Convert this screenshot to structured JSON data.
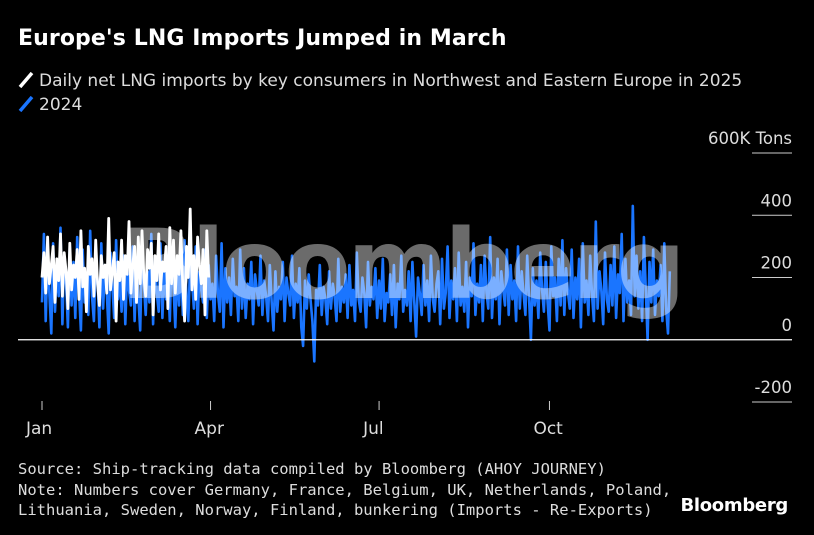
{
  "title": "Europe's LNG Imports Jumped in March",
  "legend": [
    {
      "label": "Daily net LNG imports by key consumers in Northwest and Eastern Europe in 2025",
      "color": "#ffffff"
    },
    {
      "label": "2024",
      "color": "#1a75ff"
    }
  ],
  "watermark": "Bloomberg",
  "footer": {
    "source": "Source: Ship-tracking data compiled by Bloomberg (AHOY JOURNEY)",
    "note_line1": "Note: Numbers cover Germany, France, Belgium, UK, Netherlands, Poland,",
    "note_line2": "Lithuania, Sweden, Norway, Finland, bunkering (Imports - Re-Exports)",
    "brand": "Bloomberg"
  },
  "chart_data": {
    "type": "line",
    "title": "Europe's LNG Imports Jumped in March",
    "ylabel": "Tons",
    "ylim": [
      -200,
      600
    ],
    "yticks": [
      {
        "value": 600,
        "label": "600K Tons"
      },
      {
        "value": 400,
        "label": "400"
      },
      {
        "value": 200,
        "label": "200"
      },
      {
        "value": 0,
        "label": "0"
      },
      {
        "value": -200,
        "label": "-200"
      }
    ],
    "xlim": [
      1,
      366
    ],
    "xticks": [
      {
        "day": 1,
        "label": "Jan"
      },
      {
        "day": 92,
        "label": "Apr"
      },
      {
        "day": 183,
        "label": "Jul"
      },
      {
        "day": 275,
        "label": "Oct"
      }
    ],
    "series": [
      {
        "name": "2024",
        "color": "#1a75ff",
        "start_day": 1,
        "values": [
          120,
          340,
          60,
          280,
          150,
          20,
          310,
          90,
          230,
          140,
          360,
          50,
          270,
          180,
          40,
          300,
          110,
          250,
          70,
          330,
          160,
          30,
          290,
          120,
          210,
          80,
          350,
          140,
          60,
          260,
          190,
          40,
          310,
          100,
          240,
          150,
          20,
          280,
          170,
          70,
          320,
          130,
          200,
          90,
          270,
          50,
          230,
          160,
          110,
          300,
          60,
          250,
          140,
          30,
          290,
          180,
          80,
          220,
          120,
          340,
          50,
          260,
          150,
          90,
          310,
          70,
          240,
          130,
          200,
          60,
          280,
          170,
          40,
          230,
          110,
          270,
          80,
          320,
          140,
          60,
          250,
          190,
          100,
          300,
          50,
          220,
          160,
          120,
          290,
          70,
          240,
          130,
          180,
          60,
          270,
          150,
          90,
          310,
          40,
          230,
          120,
          200,
          80,
          260,
          140,
          170,
          60,
          290,
          100,
          230,
          70,
          180,
          130,
          250,
          50,
          210,
          160,
          110,
          270,
          80,
          190,
          140,
          60,
          240,
          120,
          30,
          220,
          90,
          170,
          130,
          250,
          60,
          200,
          150,
          110,
          270,
          70,
          180,
          120,
          230,
          40,
          -20,
          190,
          100,
          210,
          130,
          60,
          -70,
          160,
          110,
          240,
          80,
          170,
          130,
          50,
          220,
          100,
          180,
          140,
          60,
          260,
          90,
          170,
          120,
          210,
          70,
          240,
          110,
          160,
          60,
          280,
          130,
          90,
          200,
          150,
          40,
          250,
          110,
          170,
          130,
          230,
          70,
          190,
          100,
          260,
          60,
          150,
          120,
          210,
          80,
          240,
          40,
          180,
          130,
          270,
          90,
          160,
          110,
          220,
          60,
          250,
          120,
          10,
          200,
          150,
          80,
          240,
          110,
          190,
          60,
          270,
          130,
          90,
          180,
          220,
          50,
          260,
          100,
          150,
          300,
          70,
          190,
          130,
          230,
          60,
          280,
          110,
          170,
          90,
          250,
          40,
          200,
          140,
          310,
          80,
          180,
          120,
          240,
          60,
          270,
          150,
          100,
          330,
          70,
          200,
          130,
          260,
          50,
          220,
          160,
          110,
          290,
          80,
          240,
          130,
          190,
          60,
          300,
          100,
          220,
          150,
          80,
          270,
          130,
          0,
          230,
          110,
          190,
          70,
          280,
          160,
          90,
          250,
          120,
          30,
          300,
          140,
          200,
          60,
          260,
          110,
          320,
          80,
          230,
          150,
          100,
          290,
          70,
          200,
          130,
          260,
          40,
          310,
          120,
          190,
          80,
          270,
          140,
          60,
          380,
          100,
          220,
          160,
          50,
          280,
          130,
          90,
          240,
          110,
          300,
          70,
          210,
          150,
          340,
          60,
          260,
          120,
          190,
          80,
          430,
          140,
          270,
          100,
          220,
          60,
          330,
          160,
          0,
          250,
          120,
          290,
          80,
          190,
          140,
          240,
          60,
          310,
          100,
          20,
          220
        ]
      },
      {
        "name": "2025",
        "color": "#ffffff",
        "start_day": 1,
        "values": [
          200,
          280,
          150,
          330,
          180,
          240,
          300,
          120,
          260,
          190,
          340,
          140,
          280,
          220,
          100,
          310,
          160,
          240,
          200,
          290,
          130,
          350,
          170,
          230,
          90,
          300,
          210,
          260,
          140,
          320,
          180,
          110,
          270,
          200,
          240,
          150,
          390,
          160,
          220,
          280,
          60,
          250,
          190,
          320,
          130,
          270,
          210,
          380,
          150,
          240,
          300,
          120,
          330,
          180,
          350,
          200,
          140,
          290,
          230,
          310,
          80,
          270,
          190,
          340,
          160,
          250,
          220,
          300,
          100,
          360,
          180,
          320,
          150,
          270,
          210,
          350,
          170,
          60,
          300,
          200,
          420,
          160,
          270,
          130,
          330,
          240,
          180,
          290,
          80,
          350,
          200
        ]
      }
    ]
  }
}
